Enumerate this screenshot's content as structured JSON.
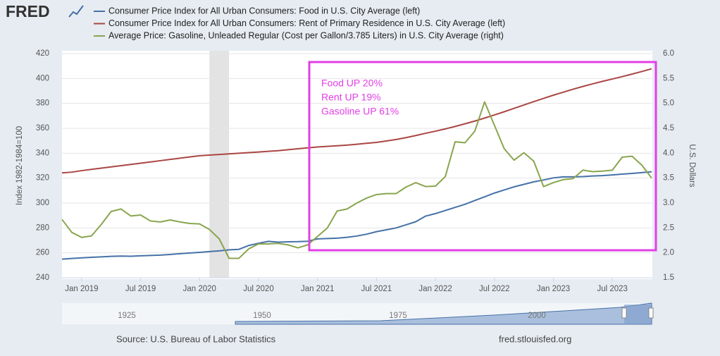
{
  "logo": "FRED",
  "chart_data": {
    "type": "line",
    "x": [
      "2018-11",
      "2018-12",
      "2019-01",
      "2019-02",
      "2019-03",
      "2019-04",
      "2019-05",
      "2019-06",
      "2019-07",
      "2019-08",
      "2019-09",
      "2019-10",
      "2019-11",
      "2019-12",
      "2020-01",
      "2020-02",
      "2020-03",
      "2020-04",
      "2020-05",
      "2020-06",
      "2020-07",
      "2020-08",
      "2020-09",
      "2020-10",
      "2020-11",
      "2020-12",
      "2021-01",
      "2021-02",
      "2021-03",
      "2021-04",
      "2021-05",
      "2021-06",
      "2021-07",
      "2021-08",
      "2021-09",
      "2021-10",
      "2021-11",
      "2021-12",
      "2022-01",
      "2022-02",
      "2022-03",
      "2022-04",
      "2022-05",
      "2022-06",
      "2022-07",
      "2022-08",
      "2022-09",
      "2022-10",
      "2022-11",
      "2022-12",
      "2023-01",
      "2023-02",
      "2023-03",
      "2023-04",
      "2023-05",
      "2023-06",
      "2023-07",
      "2023-08",
      "2023-09",
      "2023-10",
      "2023-11"
    ],
    "series": [
      {
        "name": "Consumer Price Index for All Urban Consumers: Food in U.S. City Average (left)",
        "color": "#4572a7",
        "axis": "y",
        "values": [
          254.9,
          255.5,
          256.0,
          256.4,
          256.8,
          257.2,
          257.4,
          257.3,
          257.6,
          257.9,
          258.2,
          258.7,
          259.3,
          259.9,
          260.4,
          261.0,
          261.6,
          262.4,
          262.8,
          265.9,
          267.7,
          269.2,
          268.6,
          268.9,
          269.0,
          269.3,
          271.2,
          271.5,
          271.8,
          272.5,
          273.5,
          275.0,
          277.0,
          278.5,
          280.0,
          282.5,
          285.0,
          289.5,
          291.5,
          294.0,
          296.5,
          299.0,
          302.0,
          305.0,
          308.0,
          310.5,
          313.0,
          315.0,
          317.0,
          318.5,
          320.2,
          321.0,
          321.0,
          321.2,
          321.7,
          322.0,
          322.6,
          323.2,
          323.8,
          324.4,
          325.1
        ]
      },
      {
        "name": "Consumer Price Index for All Urban Consumers: Rent of Primary Residence in U.S. City Average (left)",
        "color": "#aa4643",
        "axis": "y",
        "values": [
          324.2,
          324.8,
          326,
          327,
          328,
          329,
          330,
          331,
          332,
          333,
          334,
          335,
          336,
          337,
          338,
          338.5,
          339,
          339.5,
          340,
          340.5,
          341,
          341.5,
          342,
          342.8,
          343.6,
          344.3,
          345,
          345.5,
          346,
          346.5,
          347.2,
          348,
          348.7,
          349.8,
          351,
          352.5,
          354.2,
          356,
          357.7,
          359.5,
          361.5,
          363.6,
          365.8,
          368.2,
          370.7,
          373.3,
          376,
          378.7,
          381.4,
          384,
          386.6,
          389,
          391.4,
          393.6,
          395.7,
          397.7,
          399.6,
          401.5,
          403.5,
          405.6,
          407.8
        ]
      },
      {
        "name": "Average Price: Gasoline, Unleaded Regular (Cost per Gallon/3.785 Liters) in U.S. City Average (right)",
        "color": "#89a54e",
        "axis": "y2",
        "values": [
          2.67,
          2.41,
          2.31,
          2.34,
          2.57,
          2.83,
          2.88,
          2.74,
          2.76,
          2.64,
          2.62,
          2.66,
          2.62,
          2.59,
          2.58,
          2.47,
          2.28,
          1.89,
          1.89,
          2.08,
          2.18,
          2.18,
          2.19,
          2.16,
          2.1,
          2.16,
          2.33,
          2.5,
          2.84,
          2.88,
          3.0,
          3.1,
          3.17,
          3.19,
          3.19,
          3.32,
          3.41,
          3.33,
          3.34,
          3.53,
          4.23,
          4.21,
          4.44,
          5.03,
          4.56,
          4.09,
          3.86,
          4.01,
          3.84,
          3.33,
          3.41,
          3.47,
          3.49,
          3.66,
          3.63,
          3.64,
          3.66,
          3.92,
          3.94,
          3.76,
          3.5
        ]
      }
    ],
    "ylabel": "Index 1982-1984=100",
    "y2label": "U.S. Dollars",
    "ylim": [
      240,
      420
    ],
    "yticks": [
      240,
      260,
      280,
      300,
      320,
      340,
      360,
      380,
      400,
      420
    ],
    "y2lim": [
      1.5,
      6
    ],
    "y2ticks": [
      1.5,
      {
        "value": 2,
        "label": "2.0"
      },
      2.5,
      {
        "value": 3,
        "label": "3.0"
      },
      3.5,
      {
        "value": 4,
        "label": "4.0"
      },
      4.5,
      {
        "value": 5,
        "label": "5.0"
      },
      5.5,
      {
        "value": 6,
        "label": "6.0"
      }
    ],
    "xticks": [
      {
        "value": "2019-01",
        "label": "Jan 2019"
      },
      {
        "value": "2019-07",
        "label": "Jul 2019"
      },
      {
        "value": "2020-01",
        "label": "Jan 2020"
      },
      {
        "value": "2020-07",
        "label": "Jul 2020"
      },
      {
        "value": "2021-01",
        "label": "Jan 2021"
      },
      {
        "value": "2021-07",
        "label": "Jul 2021"
      },
      {
        "value": "2022-01",
        "label": "Jan 2022"
      },
      {
        "value": "2022-07",
        "label": "Jul 2022"
      },
      {
        "value": "2023-01",
        "label": "Jan 2023"
      },
      {
        "value": "2023-07",
        "label": "Jul 2023"
      }
    ],
    "grid": true,
    "recessions": [
      {
        "start": "2020-02",
        "end": "2020-04"
      }
    ],
    "annotations": [
      "Food UP 20%",
      "Rent UP 19%",
      "Gasoline UP 61%"
    ],
    "annotation_color": "#e23fe6"
  },
  "navigator": {
    "labels": [
      "1925",
      "1950",
      "1975",
      "2000"
    ]
  },
  "source": "Source: U.S. Bureau of Labor Statistics",
  "site": "fred.stlouisfed.org"
}
